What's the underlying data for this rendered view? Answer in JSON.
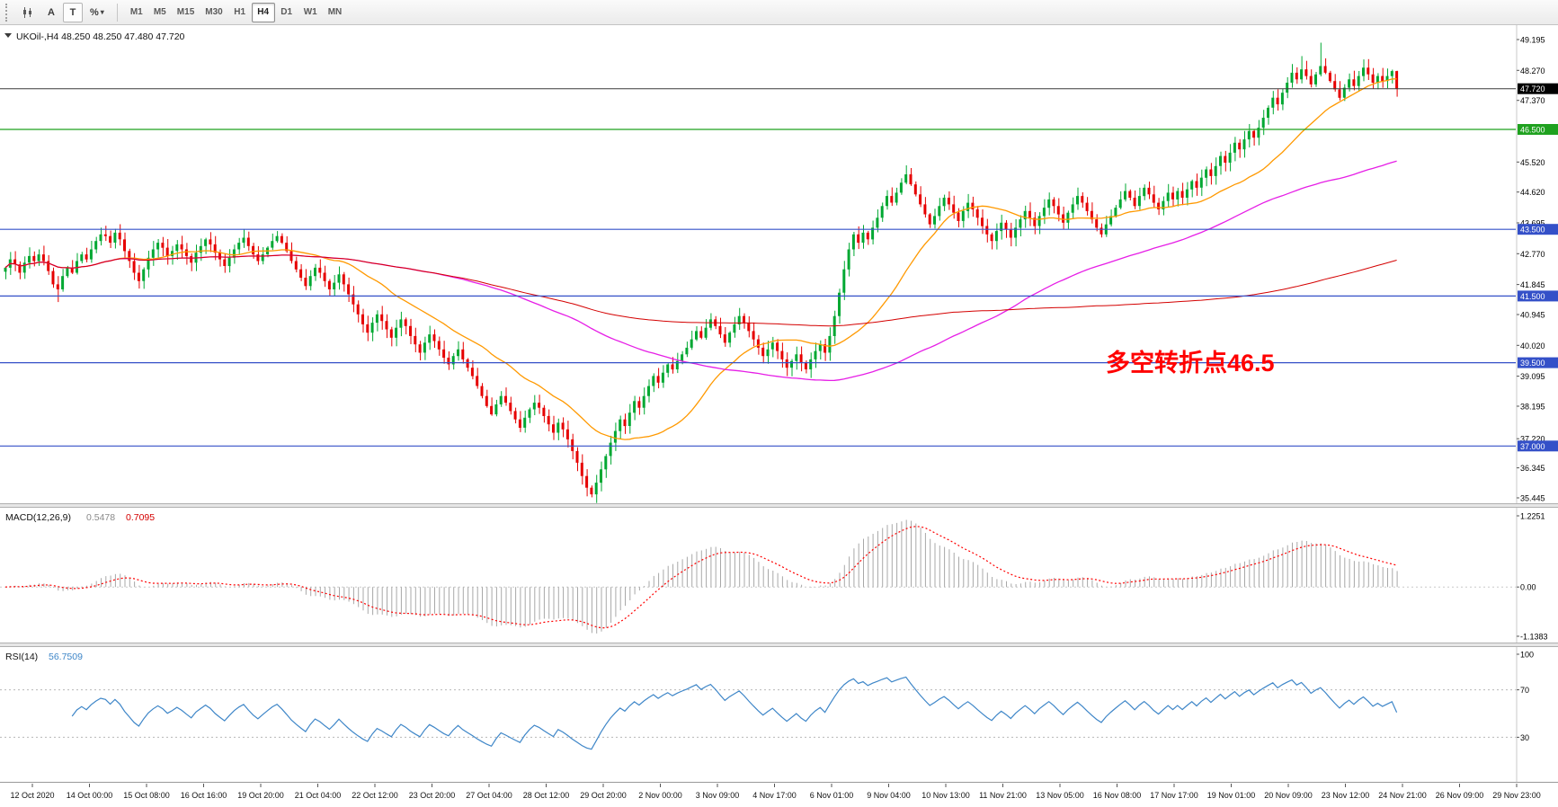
{
  "toolbar": {
    "tools": [
      {
        "label": "A"
      },
      {
        "label": "T"
      }
    ],
    "studies_icon": "%",
    "timeframes": [
      "M1",
      "M5",
      "M15",
      "M30",
      "H1",
      "H4",
      "D1",
      "W1",
      "MN"
    ],
    "active_timeframe": "H4"
  },
  "main_chart": {
    "title": "UKOil-,H4 48.250 48.250 47.480 47.720",
    "annotation": "多空转折点46.5",
    "annotation_color": "#FF0000",
    "price_ticks": [
      49.195,
      48.27,
      47.37,
      45.52,
      44.62,
      43.695,
      42.77,
      41.845,
      40.945,
      40.02,
      39.095,
      38.195,
      37.22,
      36.345,
      35.445
    ],
    "hlines": [
      {
        "price": 47.72,
        "label": "47.720",
        "color": "#3A3A3A",
        "label_bg": "#000000",
        "width": 1
      },
      {
        "price": 46.5,
        "label": "46.500",
        "color": "#1FA11F",
        "label_bg": "#1FA11F",
        "width": 1.2
      },
      {
        "price": 43.5,
        "label": "43.500",
        "color": "#3450C8",
        "label_bg": "#3450C8",
        "width": 1.2
      },
      {
        "price": 41.5,
        "label": "41.500",
        "color": "#3450C8",
        "label_bg": "#3450C8",
        "width": 1.2
      },
      {
        "price": 39.5,
        "label": "39.500",
        "color": "#3450C8",
        "label_bg": "#3450C8",
        "width": 1.2
      },
      {
        "price": 37.0,
        "label": "37.000",
        "color": "#3450C8",
        "label_bg": "#3450C8",
        "width": 1.2
      }
    ]
  },
  "macd": {
    "title": "MACD(12,26,9)",
    "value_main": "0.5478",
    "value_signal": "0.7095",
    "ticks": [
      {
        "label": "1.2251",
        "pos": "top"
      },
      {
        "label": "0.00",
        "v": 0
      },
      {
        "label": "-1.1383",
        "pos": "bottom"
      }
    ]
  },
  "rsi": {
    "title": "RSI(14)",
    "value": "56.7509",
    "ticks": [
      {
        "v": 100,
        "label": "100"
      },
      {
        "v": 70,
        "label": "70"
      },
      {
        "v": 30,
        "label": "30"
      }
    ]
  },
  "time_axis": [
    "12 Oct 2020",
    "14 Oct 00:00",
    "15 Oct 08:00",
    "16 Oct 16:00",
    "19 Oct 20:00",
    "21 Oct 04:00",
    "22 Oct 12:00",
    "23 Oct 20:00",
    "27 Oct 04:00",
    "28 Oct 12:00",
    "29 Oct 20:00",
    "2 Nov 00:00",
    "3 Nov 09:00",
    "4 Nov 17:00",
    "6 Nov 01:00",
    "9 Nov 04:00",
    "10 Nov 13:00",
    "11 Nov 21:00",
    "13 Nov 05:00",
    "16 Nov 08:00",
    "17 Nov 17:00",
    "19 Nov 01:00",
    "20 Nov 09:00",
    "23 Nov 12:00",
    "24 Nov 21:00",
    "26 Nov 09:00",
    "29 Nov 23:00"
  ],
  "chart_data": {
    "type": "candlestick",
    "symbol": "UKOil-",
    "timeframe": "H4",
    "closes": [
      42.35,
      42.6,
      42.45,
      42.2,
      42.5,
      42.7,
      42.55,
      42.75,
      42.55,
      42.25,
      41.85,
      41.7,
      42.1,
      42.35,
      42.2,
      42.55,
      42.75,
      42.6,
      42.9,
      43.15,
      43.35,
      43.3,
      43.1,
      43.4,
      43.2,
      42.85,
      42.55,
      42.2,
      41.95,
      42.3,
      42.65,
      42.9,
      43.1,
      42.95,
      42.7,
      42.85,
      43.05,
      42.9,
      42.7,
      42.5,
      42.8,
      43.0,
      43.2,
      43.05,
      42.8,
      42.6,
      42.4,
      42.65,
      42.9,
      43.1,
      43.25,
      43.0,
      42.75,
      42.55,
      42.75,
      42.95,
      43.15,
      43.3,
      43.1,
      42.85,
      42.55,
      42.3,
      42.05,
      41.8,
      42.1,
      42.35,
      42.2,
      41.95,
      41.7,
      41.9,
      42.15,
      41.85,
      41.55,
      41.25,
      40.95,
      40.65,
      40.4,
      40.7,
      40.95,
      40.75,
      40.5,
      40.25,
      40.55,
      40.8,
      40.6,
      40.3,
      40.05,
      39.8,
      40.1,
      40.35,
      40.15,
      39.9,
      39.65,
      39.45,
      39.7,
      39.9,
      39.6,
      39.35,
      39.1,
      38.8,
      38.5,
      38.2,
      37.95,
      38.25,
      38.5,
      38.3,
      38.05,
      37.8,
      37.55,
      37.85,
      38.1,
      38.3,
      38.15,
      37.9,
      37.65,
      37.4,
      37.7,
      37.5,
      37.2,
      36.85,
      36.5,
      36.1,
      35.75,
      35.55,
      35.9,
      36.3,
      36.7,
      37.1,
      37.45,
      37.8,
      37.6,
      38.0,
      38.35,
      38.15,
      38.5,
      38.8,
      39.1,
      38.9,
      39.2,
      39.45,
      39.3,
      39.55,
      39.75,
      39.95,
      40.2,
      40.45,
      40.25,
      40.55,
      40.8,
      40.6,
      40.35,
      40.1,
      40.4,
      40.65,
      40.9,
      40.7,
      40.45,
      40.2,
      39.95,
      39.7,
      39.9,
      40.1,
      39.85,
      39.6,
      39.35,
      39.55,
      39.75,
      39.5,
      39.3,
      39.6,
      39.85,
      40.05,
      39.8,
      40.3,
      40.9,
      41.6,
      42.3,
      42.9,
      43.35,
      43.1,
      43.4,
      43.2,
      43.55,
      43.85,
      44.2,
      44.5,
      44.3,
      44.6,
      44.9,
      45.15,
      44.85,
      44.55,
      44.25,
      43.95,
      43.65,
      43.9,
      44.2,
      44.45,
      44.25,
      44.0,
      43.75,
      44.05,
      44.3,
      44.1,
      43.85,
      43.6,
      43.35,
      43.15,
      43.45,
      43.7,
      43.5,
      43.25,
      43.55,
      43.8,
      44.05,
      43.85,
      43.6,
      43.9,
      44.15,
      44.4,
      44.2,
      43.95,
      43.7,
      44.0,
      44.25,
      44.5,
      44.3,
      44.05,
      43.8,
      43.55,
      43.35,
      43.65,
      43.9,
      44.15,
      44.4,
      44.65,
      44.45,
      44.2,
      44.5,
      44.75,
      44.55,
      44.3,
      44.1,
      44.35,
      44.6,
      44.4,
      44.65,
      44.45,
      44.7,
      44.95,
      44.75,
      45.05,
      45.3,
      45.1,
      45.4,
      45.7,
      45.5,
      45.8,
      46.1,
      45.9,
      46.2,
      46.45,
      46.25,
      46.55,
      46.85,
      47.15,
      47.45,
      47.25,
      47.6,
      47.9,
      48.2,
      48.0,
      48.3,
      48.1,
      47.85,
      48.15,
      48.4,
      48.2,
      47.95,
      47.7,
      47.45,
      47.75,
      48.0,
      47.8,
      48.1,
      48.35,
      48.15,
      47.9,
      48.1,
      47.95,
      48.1,
      48.25,
      47.72
    ],
    "spike_highs": {
      "20": 43.55,
      "57": 43.45,
      "189": 45.42,
      "272": 48.7,
      "276": 49.1,
      "285": 48.6,
      "292": 48.26
    },
    "spike_lows": {
      "11": 41.32,
      "123": 35.46,
      "168": 39.18,
      "292": 47.48
    },
    "moving_averages": [
      {
        "name": "fast",
        "period": 24,
        "color": "#FF9900"
      },
      {
        "name": "medium",
        "period": 90,
        "color": "#E61EE6"
      },
      {
        "name": "slow",
        "period": 200,
        "color": "#D40000"
      }
    ],
    "macd": {
      "fast": 12,
      "slow": 26,
      "signal": 9,
      "histogram_color": "#A8A8A8",
      "signal_color": "#FF0000"
    },
    "rsi": {
      "period": 14,
      "color": "#3E86C8",
      "levels": [
        70,
        30
      ]
    },
    "colors": {
      "bull": "#00A832",
      "bear": "#E60000"
    }
  }
}
